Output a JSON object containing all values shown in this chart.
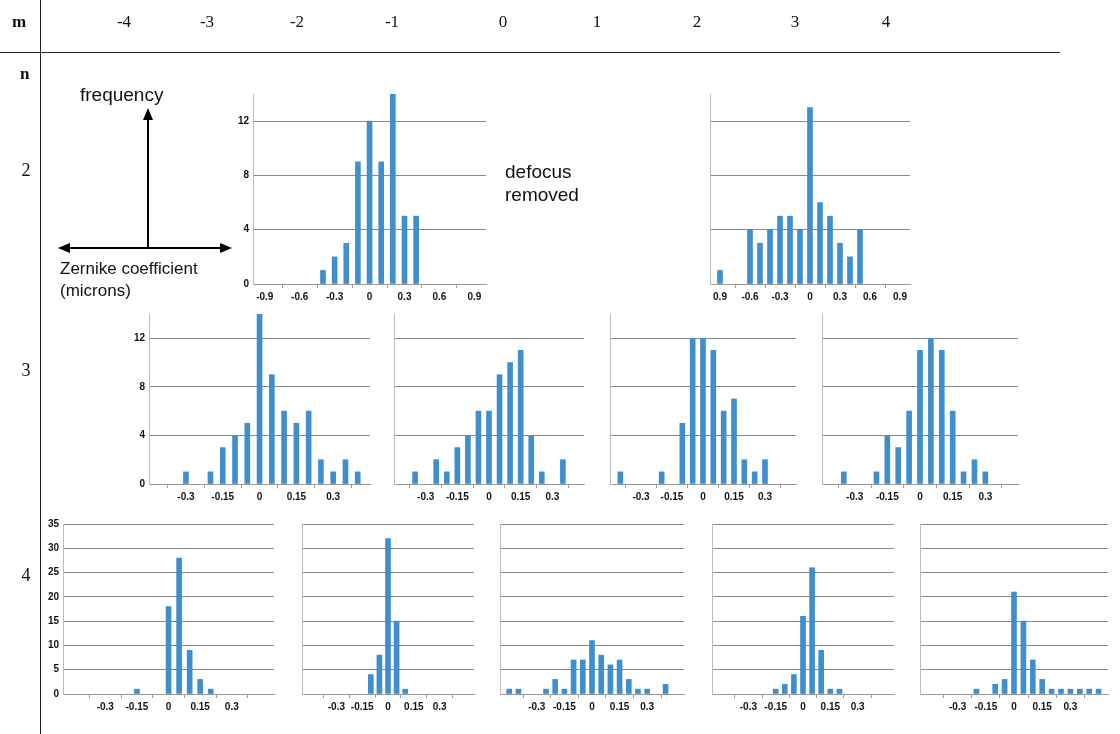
{
  "chart_data": [
    {
      "type": "other",
      "xlabel": "m",
      "ylabel": "n",
      "categories": [
        "-4",
        "-3",
        "-2",
        "-1",
        "0",
        "1",
        "2",
        "3",
        "4"
      ],
      "y_categories": [
        "2",
        "3",
        "4"
      ],
      "annotations": [
        "frequency",
        "Zernike coefficient (microns)",
        "defocus removed"
      ]
    },
    {
      "type": "bar",
      "x": [
        -0.4,
        -0.3,
        -0.2,
        -0.1,
        0,
        0.1,
        0.2,
        0.3,
        0.4
      ],
      "values": [
        1,
        2,
        3,
        9,
        12,
        9,
        14,
        5,
        5
      ],
      "color": "#3f8fcf",
      "xlim": [
        -1,
        1
      ],
      "xticks": [
        -0.9,
        -0.6,
        -0.3,
        0,
        0.3,
        0.6,
        0.9
      ],
      "ylim": [
        0,
        14
      ],
      "yticks": [
        0,
        4,
        8,
        12
      ],
      "grid": "y"
    },
    {
      "type": "bar",
      "x": [
        -0.9,
        -0.6,
        -0.5,
        -0.4,
        -0.3,
        -0.2,
        -0.1,
        0,
        0.1,
        0.2,
        0.3,
        0.4,
        0.5
      ],
      "values": [
        1,
        4,
        3,
        4,
        5,
        5,
        4,
        13,
        6,
        5,
        3,
        2,
        4
      ],
      "color": "#3f8fcf",
      "xlim": [
        -1,
        1
      ],
      "xticks": [
        {
          "value": -0.9,
          "label": "0.9"
        },
        -0.6,
        -0.3,
        0,
        0.3,
        0.6,
        0.9
      ],
      "ylim": [
        0,
        14
      ],
      "yticks": [
        0,
        4,
        8,
        12
      ],
      "grid": "y",
      "tick_labels": "x"
    },
    {
      "type": "bar",
      "x": [
        -0.3,
        -0.2,
        -0.15,
        -0.1,
        -0.05,
        0,
        0.05,
        0.1,
        0.15,
        0.2,
        0.25,
        0.3,
        0.35,
        0.4
      ],
      "values": [
        1,
        1,
        3,
        4,
        5,
        14,
        9,
        6,
        5,
        6,
        2,
        1,
        2,
        1
      ],
      "color": "#3f8fcf",
      "xlim": [
        -0.45,
        0.45
      ],
      "xticks": [
        -0.3,
        -0.15,
        0,
        0.15,
        0.3
      ],
      "ylim": [
        0,
        14
      ],
      "yticks": [
        0,
        4,
        8,
        12
      ],
      "grid": "y"
    },
    {
      "type": "bar",
      "x": [
        -0.35,
        -0.25,
        -0.2,
        -0.15,
        -0.1,
        -0.05,
        0,
        0.05,
        0.1,
        0.15,
        0.2,
        0.25,
        0.35
      ],
      "values": [
        1,
        2,
        1,
        3,
        4,
        6,
        6,
        9,
        10,
        11,
        4,
        1,
        2
      ],
      "color": "#3f8fcf",
      "xlim": [
        -0.45,
        0.45
      ],
      "xticks": [
        -0.3,
        -0.15,
        0,
        0.15,
        0.3
      ],
      "ylim": [
        0,
        14
      ],
      "yticks": [
        0,
        4,
        8,
        12
      ],
      "grid": "y",
      "tick_labels": "x"
    },
    {
      "type": "bar",
      "x": [
        -0.4,
        -0.2,
        -0.1,
        -0.05,
        0,
        0.05,
        0.1,
        0.15,
        0.2,
        0.25,
        0.3
      ],
      "values": [
        1,
        1,
        5,
        12,
        12,
        11,
        6,
        7,
        2,
        1,
        2
      ],
      "color": "#3f8fcf",
      "xlim": [
        -0.45,
        0.45
      ],
      "xticks": [
        -0.3,
        -0.15,
        0,
        0.15,
        0.3
      ],
      "ylim": [
        0,
        14
      ],
      "yticks": [
        0,
        4,
        8,
        12
      ],
      "grid": "y",
      "tick_labels": "x"
    },
    {
      "type": "bar",
      "x": [
        -0.35,
        -0.2,
        -0.15,
        -0.1,
        -0.05,
        0,
        0.05,
        0.1,
        0.15,
        0.2,
        0.25,
        0.3
      ],
      "values": [
        1,
        1,
        4,
        3,
        6,
        11,
        12,
        11,
        6,
        1,
        2,
        1
      ],
      "color": "#3f8fcf",
      "xlim": [
        -0.45,
        0.45
      ],
      "xticks": [
        -0.3,
        -0.15,
        0,
        0.15,
        0.3
      ],
      "ylim": [
        0,
        14
      ],
      "yticks": [
        0,
        4,
        8,
        12
      ],
      "grid": "y",
      "tick_labels": "x"
    },
    {
      "type": "bar",
      "x": [
        -0.15,
        0,
        0.05,
        0.1,
        0.15,
        0.2
      ],
      "values": [
        1,
        18,
        28,
        9,
        3,
        1
      ],
      "color": "#3f8fcf",
      "xlim": [
        -0.5,
        0.5
      ],
      "xticks": [
        -0.3,
        -0.15,
        0,
        0.15,
        0.3
      ],
      "ylim": [
        0,
        35
      ],
      "yticks": [
        0,
        5,
        10,
        15,
        20,
        25,
        30,
        35
      ],
      "grid": "y"
    },
    {
      "type": "bar",
      "x": [
        -0.1,
        -0.05,
        0,
        0.05,
        0.1
      ],
      "values": [
        4,
        8,
        32,
        15,
        1
      ],
      "color": "#3f8fcf",
      "xlim": [
        -0.5,
        0.5
      ],
      "xticks": [
        -0.3,
        -0.15,
        0,
        0.15,
        0.3
      ],
      "ylim": [
        0,
        35
      ],
      "yticks": [
        0,
        5,
        10,
        15,
        20,
        25,
        30,
        35
      ],
      "grid": "y",
      "tick_labels": "x"
    },
    {
      "type": "bar",
      "x": [
        -0.45,
        -0.4,
        -0.25,
        -0.2,
        -0.15,
        -0.1,
        -0.05,
        0,
        0.05,
        0.1,
        0.15,
        0.2,
        0.25,
        0.3,
        0.4
      ],
      "values": [
        1,
        1,
        1,
        3,
        1,
        7,
        7,
        11,
        8,
        6,
        7,
        3,
        1,
        1,
        2
      ],
      "color": "#3f8fcf",
      "xlim": [
        -0.5,
        0.5
      ],
      "xticks": [
        -0.3,
        -0.15,
        0,
        0.15,
        0.3
      ],
      "ylim": [
        0,
        35
      ],
      "yticks": [
        0,
        5,
        10,
        15,
        20,
        25,
        30,
        35
      ],
      "grid": "y",
      "tick_labels": "x"
    },
    {
      "type": "bar",
      "x": [
        -0.15,
        -0.1,
        -0.05,
        0,
        0.05,
        0.1,
        0.15,
        0.2
      ],
      "values": [
        1,
        2,
        4,
        16,
        26,
        9,
        1,
        1
      ],
      "color": "#3f8fcf",
      "xlim": [
        -0.5,
        0.5
      ],
      "xticks": [
        -0.3,
        -0.15,
        0,
        0.15,
        0.3
      ],
      "ylim": [
        0,
        35
      ],
      "yticks": [
        0,
        5,
        10,
        15,
        20,
        25,
        30,
        35
      ],
      "grid": "y",
      "tick_labels": "x"
    },
    {
      "type": "bar",
      "x": [
        -0.2,
        -0.1,
        -0.05,
        0,
        0.05,
        0.1,
        0.15,
        0.2,
        0.25,
        0.3,
        0.35,
        0.4,
        0.45
      ],
      "values": [
        1,
        2,
        3,
        21,
        15,
        7,
        3,
        1,
        1,
        1,
        1,
        1,
        1
      ],
      "color": "#3f8fcf",
      "xlim": [
        -0.5,
        0.5
      ],
      "xticks": [
        -0.3,
        -0.15,
        0,
        0.15,
        0.3
      ],
      "ylim": [
        0,
        35
      ],
      "yticks": [
        0,
        5,
        10,
        15,
        20,
        25,
        30,
        35
      ],
      "grid": "y",
      "tick_labels": "x"
    }
  ]
}
